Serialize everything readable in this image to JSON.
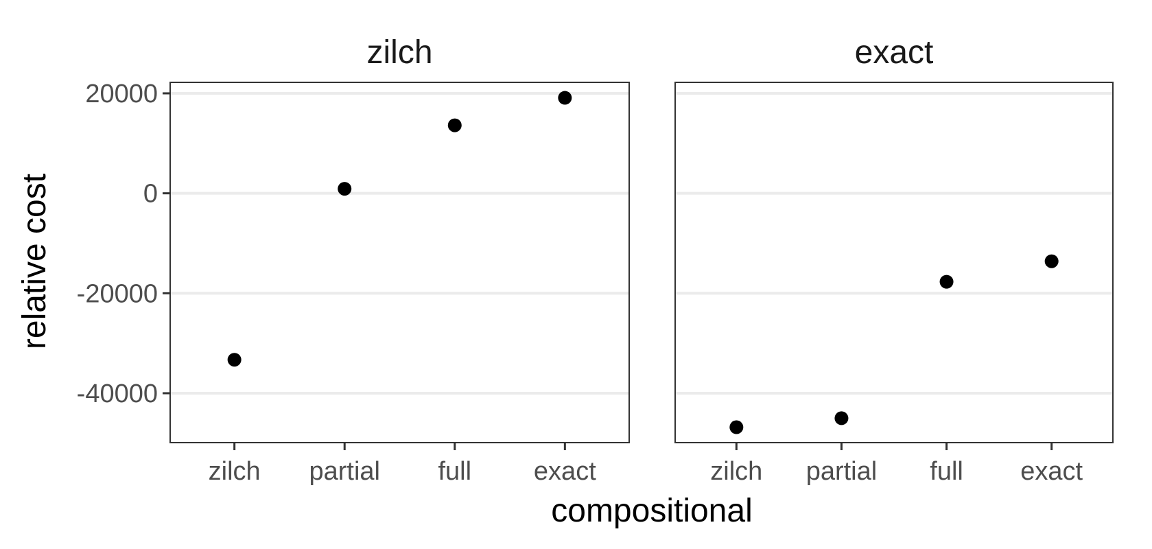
{
  "chart_data": {
    "type": "scatter",
    "xlabel": "compositional",
    "ylabel": "relative cost",
    "categories": [
      "zilch",
      "partial",
      "full",
      "exact"
    ],
    "ylim": [
      -50000,
      22000
    ],
    "yticks": [
      20000,
      0,
      -20000,
      -40000
    ],
    "ytick_labels": [
      "20000",
      "0",
      "-20000",
      "-40000"
    ],
    "grid": "horizontal major",
    "legend": "none",
    "panels": [
      {
        "title": "zilch",
        "points": [
          {
            "x": "zilch",
            "y": -33300
          },
          {
            "x": "partial",
            "y": 900
          },
          {
            "x": "full",
            "y": 13600
          },
          {
            "x": "exact",
            "y": 19100
          }
        ]
      },
      {
        "title": "exact",
        "points": [
          {
            "x": "zilch",
            "y": -46800
          },
          {
            "x": "partial",
            "y": -45000
          },
          {
            "x": "full",
            "y": -17700
          },
          {
            "x": "exact",
            "y": -13600
          }
        ]
      }
    ]
  }
}
